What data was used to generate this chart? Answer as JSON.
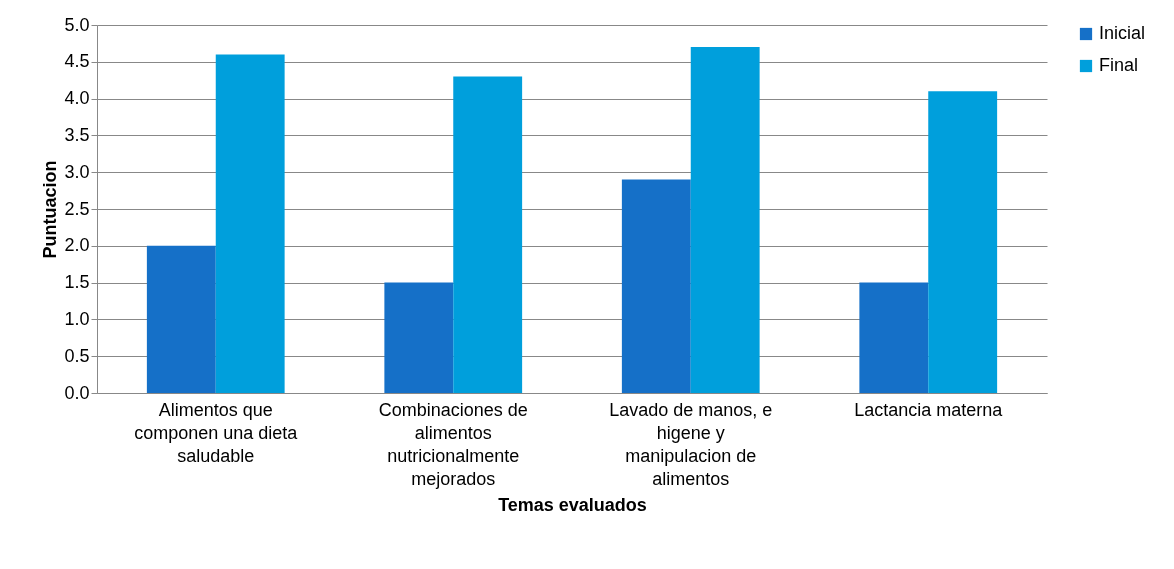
{
  "chart_data": {
    "type": "bar",
    "xlabel": "Temas evaluados",
    "ylabel": "Puntuacion",
    "categories": [
      "Alimentos que componen una dieta saludable",
      "Combinaciones de alimentos nutricionalmente mejorados",
      "Lavado de manos, e higene y manipulacion de alimentos",
      "Lactancia materna"
    ],
    "series": [
      {
        "name": "Inicial",
        "color": "#1570c8",
        "values": [
          2.0,
          1.5,
          2.9,
          1.5
        ]
      },
      {
        "name": "Final",
        "color": "#009fdc",
        "values": [
          4.6,
          4.3,
          4.7,
          4.1
        ]
      }
    ],
    "ylim": [
      0,
      5
    ],
    "yticks": [
      {
        "value": 0,
        "label": "0.0"
      },
      0.5,
      {
        "value": 1,
        "label": "1.0"
      },
      1.5,
      {
        "value": 2,
        "label": "2.0"
      },
      2.5,
      {
        "value": 3,
        "label": "3.0"
      },
      3.5,
      {
        "value": 4,
        "label": "4.0"
      },
      4.5,
      {
        "value": 5,
        "label": "5.0"
      }
    ],
    "grid": "y",
    "legend": "right"
  }
}
